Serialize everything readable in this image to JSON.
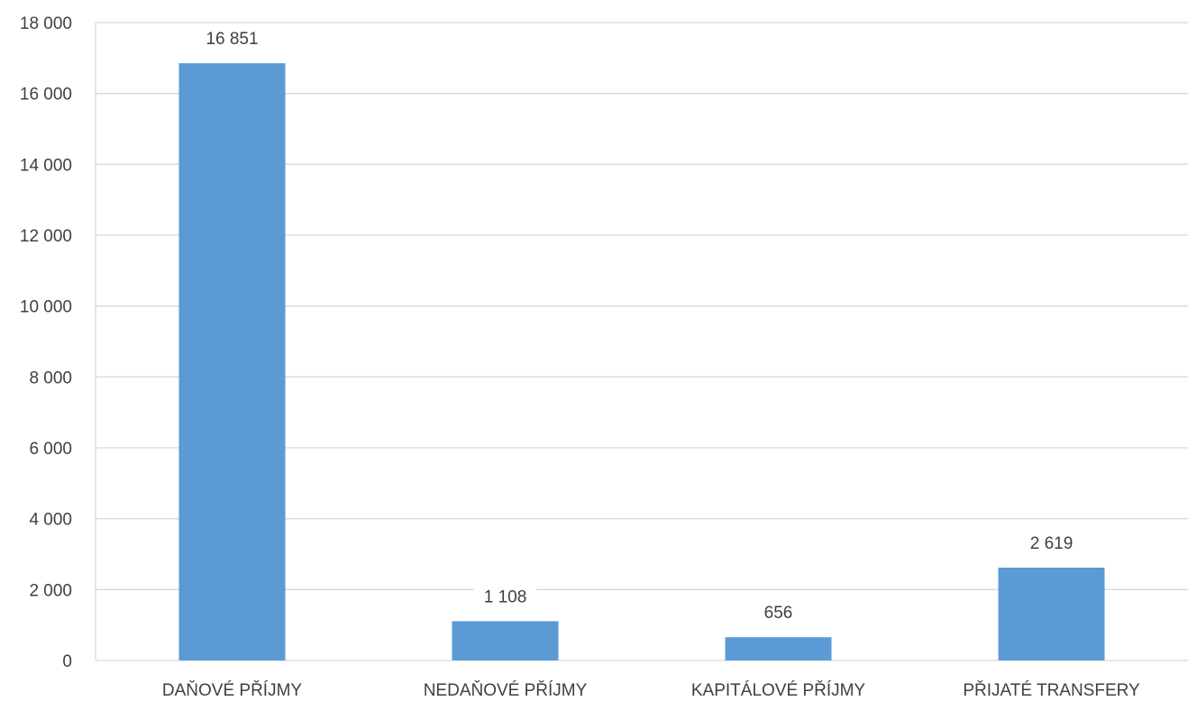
{
  "chart_data": {
    "type": "bar",
    "categories": [
      "DAŇOVÉ PŘÍJMY",
      "NEDAŇOVÉ PŘÍJMY",
      "KAPITÁLOVÉ PŘÍJMY",
      "PŘIJATÉ TRANSFERY"
    ],
    "values": [
      16851,
      1108,
      656,
      2619
    ],
    "data_labels": [
      "16 851",
      "1 108",
      "656",
      "2 619"
    ],
    "yticks": [
      0,
      2000,
      4000,
      6000,
      8000,
      10000,
      12000,
      14000,
      16000,
      18000
    ],
    "ytick_labels": [
      "0",
      "2 000",
      "4 000",
      "6 000",
      "8 000",
      "10 000",
      "12 000",
      "14 000",
      "16 000",
      "18 000"
    ],
    "ylim": [
      0,
      18000
    ],
    "title": "",
    "xlabel": "",
    "ylabel": "",
    "grid": "horizontal",
    "legend": "none",
    "colors": {
      "bar": "#5b9bd5",
      "grid": "#d9d9d9",
      "text": "#404040"
    }
  }
}
